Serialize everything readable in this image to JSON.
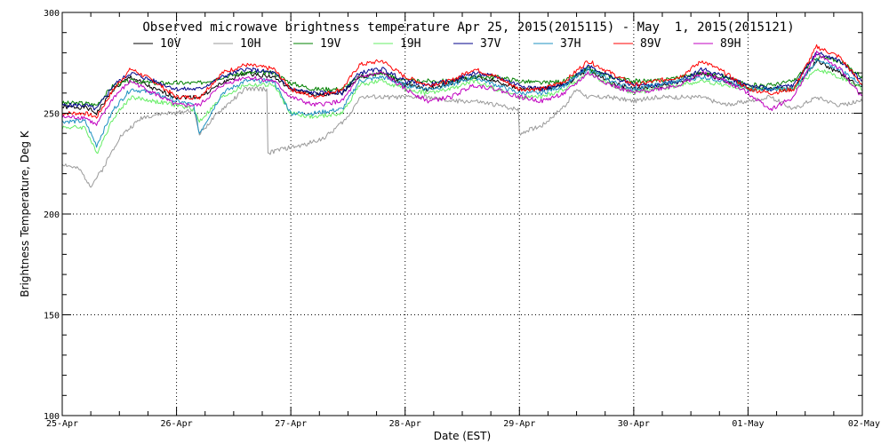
{
  "chart_data": {
    "type": "line",
    "title": "Observed microwave brightness temperature Apr 25, 2015(2015115) - May  1, 2015(2015121)",
    "xlabel": "Date (EST)",
    "ylabel": "Brightness Temperature, Deg K",
    "ylim": [
      100,
      300
    ],
    "xlim": [
      0,
      7
    ],
    "y_major_ticks": [
      100,
      150,
      200,
      250,
      300
    ],
    "y_minor_step": 10,
    "x_tick_labels": [
      "25-Apr",
      "26-Apr",
      "27-Apr",
      "28-Apr",
      "29-Apr",
      "30-Apr",
      "01-May",
      "02-May"
    ],
    "x_minor_step": 0.25,
    "grid": true,
    "legend_position": "top",
    "series": [
      {
        "name": "10V",
        "color": "#000000",
        "x": [
          0,
          0.2,
          0.3,
          0.45,
          0.6,
          0.8,
          1.0,
          1.2,
          1.4,
          1.6,
          1.85,
          2.0,
          2.2,
          2.45,
          2.6,
          2.8,
          3.0,
          3.2,
          3.4,
          3.6,
          3.8,
          4.0,
          4.2,
          4.4,
          4.6,
          4.8,
          5.0,
          5.2,
          5.4,
          5.6,
          5.8,
          6.0,
          6.2,
          6.4,
          6.6,
          6.8,
          7.0
        ],
        "y": [
          253,
          253,
          250,
          262,
          268,
          262,
          258,
          258,
          265,
          270,
          268,
          262,
          259,
          260,
          268,
          270,
          264,
          262,
          265,
          268,
          266,
          262,
          262,
          264,
          272,
          265,
          262,
          263,
          265,
          270,
          266,
          262,
          262,
          262,
          276,
          270,
          262
        ]
      },
      {
        "name": "10H",
        "color": "#9a9a9a",
        "x": [
          0,
          0.15,
          0.25,
          0.35,
          0.5,
          0.7,
          0.9,
          1.0,
          1.15,
          1.2,
          1.4,
          1.6,
          1.8,
          1.8,
          1.9,
          2.1,
          2.3,
          2.5,
          2.6,
          2.8,
          3.0,
          3.2,
          3.4,
          3.6,
          3.8,
          3.99,
          4.0,
          4.2,
          4.4,
          4.5,
          4.6,
          4.8,
          5.0,
          5.2,
          5.4,
          5.6,
          5.8,
          6.0,
          6.2,
          6.4,
          6.6,
          6.8,
          7.0
        ],
        "y": [
          225,
          222,
          214,
          222,
          238,
          248,
          250,
          250,
          252,
          240,
          252,
          262,
          262,
          230,
          232,
          234,
          238,
          248,
          258,
          258,
          258,
          258,
          256,
          256,
          254,
          252,
          240,
          244,
          254,
          262,
          258,
          258,
          256,
          258,
          258,
          258,
          254,
          256,
          258,
          252,
          258,
          254,
          256
        ]
      },
      {
        "name": "19V",
        "color": "#008000",
        "x": [
          0,
          0.2,
          0.3,
          0.45,
          0.6,
          0.8,
          1.0,
          1.2,
          1.4,
          1.6,
          1.85,
          2.0,
          2.2,
          2.45,
          2.6,
          2.8,
          3.0,
          3.2,
          3.4,
          3.6,
          3.8,
          4.0,
          4.2,
          4.4,
          4.6,
          4.8,
          5.0,
          5.2,
          5.4,
          5.6,
          5.8,
          6.0,
          6.2,
          6.4,
          6.6,
          6.8,
          7.0
        ],
        "y": [
          255,
          255,
          254,
          264,
          266,
          265,
          265,
          265,
          268,
          270,
          270,
          265,
          262,
          262,
          268,
          270,
          266,
          266,
          266,
          268,
          268,
          266,
          265,
          266,
          272,
          268,
          266,
          266,
          268,
          270,
          268,
          264,
          264,
          266,
          278,
          276,
          268
        ]
      },
      {
        "name": "19H",
        "color": "#66ee66",
        "x": [
          0,
          0.2,
          0.3,
          0.45,
          0.6,
          0.8,
          1.0,
          1.15,
          1.2,
          1.4,
          1.6,
          1.85,
          2.0,
          2.2,
          2.45,
          2.6,
          2.8,
          3.0,
          3.2,
          3.4,
          3.6,
          3.8,
          4.0,
          4.2,
          4.4,
          4.6,
          4.8,
          5.0,
          5.2,
          5.4,
          5.6,
          5.8,
          6.0,
          6.2,
          6.4,
          6.6,
          6.8,
          7.0
        ],
        "y": [
          243,
          243,
          230,
          248,
          258,
          256,
          254,
          252,
          246,
          258,
          264,
          264,
          250,
          248,
          250,
          264,
          266,
          262,
          260,
          262,
          266,
          262,
          258,
          258,
          262,
          270,
          264,
          260,
          262,
          264,
          266,
          264,
          262,
          262,
          262,
          272,
          268,
          262
        ]
      },
      {
        "name": "37V",
        "color": "#00008b",
        "x": [
          0,
          0.2,
          0.3,
          0.45,
          0.6,
          0.8,
          1.0,
          1.2,
          1.4,
          1.6,
          1.85,
          2.0,
          2.2,
          2.45,
          2.6,
          2.8,
          3.0,
          3.2,
          3.4,
          3.6,
          3.8,
          4.0,
          4.2,
          4.4,
          4.6,
          4.8,
          5.0,
          5.2,
          5.4,
          5.6,
          5.8,
          6.0,
          6.2,
          6.4,
          6.6,
          6.8,
          7.0
        ],
        "y": [
          254,
          254,
          252,
          264,
          270,
          266,
          262,
          262,
          268,
          272,
          270,
          262,
          260,
          260,
          270,
          272,
          266,
          264,
          266,
          270,
          268,
          264,
          262,
          264,
          274,
          268,
          264,
          264,
          266,
          272,
          268,
          264,
          262,
          264,
          280,
          276,
          266
        ]
      },
      {
        "name": "37H",
        "color": "#1e90c0",
        "x": [
          0,
          0.2,
          0.3,
          0.45,
          0.6,
          0.8,
          1.0,
          1.15,
          1.2,
          1.4,
          1.6,
          1.85,
          2.0,
          2.2,
          2.45,
          2.6,
          2.8,
          3.0,
          3.2,
          3.4,
          3.6,
          3.8,
          4.0,
          4.2,
          4.4,
          4.6,
          4.8,
          5.0,
          5.2,
          5.4,
          5.6,
          5.8,
          6.0,
          6.2,
          6.4,
          6.6,
          6.8,
          7.0
        ],
        "y": [
          246,
          246,
          234,
          252,
          262,
          260,
          256,
          254,
          240,
          260,
          266,
          266,
          250,
          250,
          252,
          266,
          268,
          264,
          262,
          264,
          268,
          264,
          260,
          260,
          264,
          272,
          266,
          262,
          264,
          266,
          268,
          266,
          262,
          262,
          262,
          276,
          272,
          264
        ]
      },
      {
        "name": "89V",
        "color": "#ff0000",
        "x": [
          0,
          0.2,
          0.3,
          0.45,
          0.6,
          0.8,
          1.0,
          1.2,
          1.4,
          1.6,
          1.85,
          2.0,
          2.2,
          2.45,
          2.6,
          2.8,
          3.0,
          3.2,
          3.4,
          3.6,
          3.8,
          4.0,
          4.2,
          4.4,
          4.6,
          4.8,
          5.0,
          5.2,
          5.4,
          5.6,
          5.8,
          6.0,
          6.2,
          6.4,
          6.6,
          6.8,
          7.0
        ],
        "y": [
          250,
          250,
          248,
          262,
          272,
          266,
          258,
          258,
          270,
          274,
          272,
          262,
          258,
          262,
          274,
          276,
          268,
          264,
          266,
          272,
          268,
          262,
          262,
          266,
          276,
          270,
          264,
          266,
          268,
          276,
          270,
          262,
          260,
          262,
          283,
          278,
          264
        ]
      },
      {
        "name": "89H",
        "color": "#c000c0",
        "x": [
          0,
          0.2,
          0.3,
          0.45,
          0.6,
          0.8,
          1.0,
          1.2,
          1.4,
          1.6,
          1.85,
          2.0,
          2.2,
          2.45,
          2.6,
          2.8,
          3.0,
          3.2,
          3.4,
          3.6,
          3.8,
          4.0,
          4.2,
          4.4,
          4.6,
          4.8,
          5.0,
          5.2,
          5.4,
          5.6,
          5.8,
          6.0,
          6.2,
          6.4,
          6.6,
          6.8,
          7.0
        ],
        "y": [
          248,
          248,
          244,
          258,
          266,
          260,
          254,
          254,
          264,
          268,
          266,
          258,
          254,
          256,
          268,
          270,
          262,
          256,
          258,
          264,
          262,
          258,
          256,
          260,
          270,
          264,
          260,
          262,
          264,
          270,
          266,
          260,
          252,
          258,
          280,
          272,
          258
        ]
      }
    ]
  }
}
